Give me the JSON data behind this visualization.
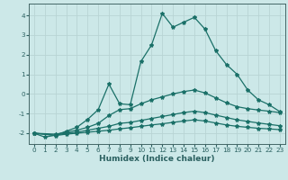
{
  "xlabel": "Humidex (Indice chaleur)",
  "bg_color": "#cce8e8",
  "grid_color": "#b8d4d4",
  "line_color": "#1a7068",
  "line1": {
    "x": [
      0,
      1,
      2,
      3,
      4,
      5,
      6,
      7,
      8,
      9,
      10,
      11,
      12,
      13,
      14,
      15,
      16,
      17,
      18,
      19,
      20,
      21,
      22,
      23
    ],
    "y": [
      -2.0,
      -2.2,
      -2.1,
      -1.9,
      -1.7,
      -1.3,
      -0.8,
      0.5,
      -0.5,
      -0.55,
      1.65,
      2.5,
      4.1,
      3.4,
      3.65,
      3.9,
      3.3,
      2.2,
      1.5,
      1.0,
      0.2,
      -0.3,
      -0.55,
      -0.9
    ]
  },
  "line2": {
    "x": [
      0,
      2,
      3,
      4,
      5,
      6,
      7,
      8,
      9,
      10,
      11,
      12,
      13,
      14,
      15,
      16,
      17,
      18,
      19,
      20,
      21,
      22,
      23
    ],
    "y": [
      -2.0,
      -2.05,
      -1.95,
      -1.85,
      -1.7,
      -1.5,
      -1.1,
      -0.8,
      -0.75,
      -0.5,
      -0.3,
      -0.15,
      0.0,
      0.12,
      0.2,
      0.05,
      -0.2,
      -0.45,
      -0.65,
      -0.75,
      -0.82,
      -0.88,
      -0.95
    ]
  },
  "line3": {
    "x": [
      0,
      2,
      3,
      4,
      5,
      6,
      7,
      8,
      9,
      10,
      11,
      12,
      13,
      14,
      15,
      16,
      17,
      18,
      19,
      20,
      21,
      22,
      23
    ],
    "y": [
      -2.0,
      -2.1,
      -2.0,
      -1.95,
      -1.85,
      -1.75,
      -1.65,
      -1.5,
      -1.45,
      -1.35,
      -1.25,
      -1.15,
      -1.05,
      -0.95,
      -0.88,
      -0.95,
      -1.08,
      -1.2,
      -1.32,
      -1.4,
      -1.48,
      -1.55,
      -1.62
    ]
  },
  "line4": {
    "x": [
      0,
      2,
      3,
      4,
      5,
      6,
      7,
      8,
      9,
      10,
      11,
      12,
      13,
      14,
      15,
      16,
      17,
      18,
      19,
      20,
      21,
      22,
      23
    ],
    "y": [
      -2.0,
      -2.12,
      -2.05,
      -2.0,
      -1.95,
      -1.9,
      -1.85,
      -1.78,
      -1.72,
      -1.65,
      -1.58,
      -1.52,
      -1.45,
      -1.38,
      -1.32,
      -1.38,
      -1.48,
      -1.58,
      -1.65,
      -1.7,
      -1.75,
      -1.78,
      -1.82
    ]
  },
  "xlim": [
    -0.5,
    23.5
  ],
  "ylim": [
    -2.55,
    4.6
  ],
  "xticks": [
    0,
    1,
    2,
    3,
    4,
    5,
    6,
    7,
    8,
    9,
    10,
    11,
    12,
    13,
    14,
    15,
    16,
    17,
    18,
    19,
    20,
    21,
    22,
    23
  ],
  "yticks": [
    -2,
    -1,
    0,
    1,
    2,
    3,
    4
  ],
  "tick_fontsize": 5.2,
  "label_fontsize": 6.5,
  "markersize": 3.0,
  "linewidth": 0.9
}
